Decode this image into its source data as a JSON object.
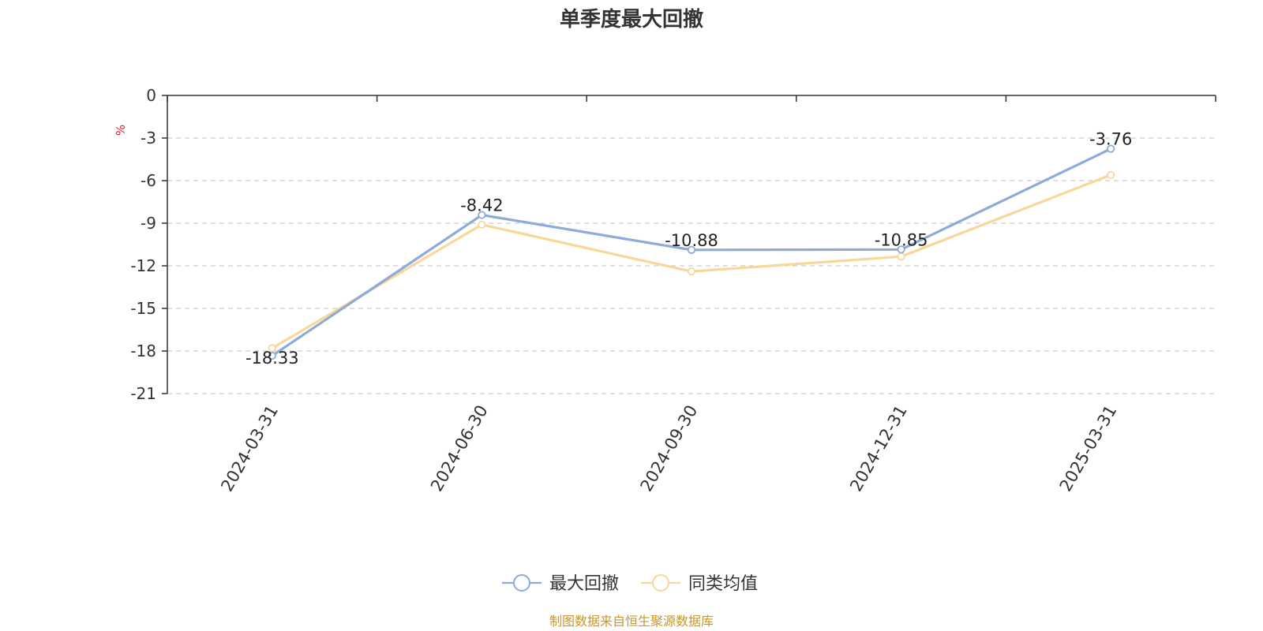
{
  "chart_data": {
    "type": "line",
    "title": "单季度最大回撤",
    "ylabel": "%",
    "ylim": [
      -21,
      0
    ],
    "yticks": [
      0,
      -3,
      -6,
      -9,
      -12,
      -15,
      -18,
      -21
    ],
    "categories": [
      "2024-03-31",
      "2024-06-30",
      "2024-09-30",
      "2024-12-31",
      "2025-03-31"
    ],
    "series": [
      {
        "name": "最大回撤",
        "color": "#8eaad8",
        "values": [
          -18.33,
          -8.42,
          -10.88,
          -10.85,
          -3.76
        ],
        "show_labels": true
      },
      {
        "name": "同类均值",
        "color": "#f8d89a",
        "values": [
          -17.8,
          -9.1,
          -12.4,
          -11.35,
          -5.6
        ],
        "show_labels": false
      }
    ],
    "data_labels": [
      "-18.33",
      "-8.42",
      "-10.88",
      "-10.85",
      "-3.76"
    ],
    "grid": true,
    "legend_position": "bottom-center"
  },
  "colors": {
    "unit_label": "#e02020",
    "source_text": "#c8962a"
  },
  "source": "制图数据来自恒生聚源数据库"
}
